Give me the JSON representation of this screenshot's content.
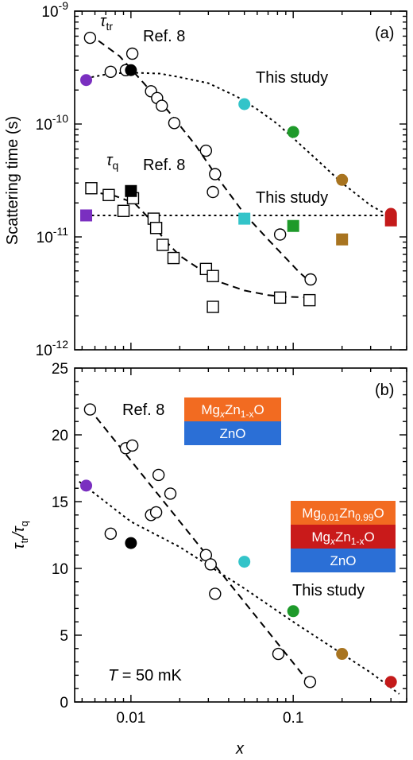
{
  "chart_data": [
    {
      "panel": "(a)",
      "type": "scatter",
      "yscale": "log",
      "xscale": "log",
      "xlim": [
        0.0045,
        0.5
      ],
      "ylim": [
        1e-12,
        1e-09
      ],
      "ylabel": "Scattering time (s)",
      "yticks": [
        {
          "value": 1e-09,
          "label": "10",
          "exp": "-9"
        },
        {
          "value": 1e-10,
          "label": "10",
          "exp": "-10"
        },
        {
          "value": 1e-11,
          "label": "10",
          "exp": "-11"
        },
        {
          "value": 1e-12,
          "label": "10",
          "exp": "-12"
        }
      ],
      "annotations": {
        "tau_tr_symbol": "τ",
        "tau_tr_sub": "tr",
        "tau_q_symbol": "τ",
        "tau_q_sub": "q",
        "ref_tr": "Ref. 8",
        "ref_q": "Ref. 8",
        "study_tr": "This study",
        "study_q": "This study"
      },
      "series": [
        {
          "name": "τtr Ref. 8",
          "marker": "open-circle",
          "points": [
            [
              0.0056,
              5.8e-10
            ],
            [
              0.0075,
              2.9e-10
            ],
            [
              0.0093,
              3e-10
            ],
            [
              0.0102,
              4.2e-10
            ],
            [
              0.0133,
              1.95e-10
            ],
            [
              0.0145,
              1.7e-10
            ],
            [
              0.0155,
              1.45e-10
            ],
            [
              0.0185,
              1.02e-10
            ],
            [
              0.029,
              5.8e-11
            ],
            [
              0.033,
              3.6e-11
            ],
            [
              0.032,
              2.5e-11
            ],
            [
              0.083,
              1.05e-11
            ],
            [
              0.128,
              4.2e-12
            ]
          ]
        },
        {
          "name": "τq Ref. 8",
          "marker": "open-square",
          "points": [
            [
              0.0057,
              2.7e-11
            ],
            [
              0.0073,
              2.35e-11
            ],
            [
              0.009,
              1.7e-11
            ],
            [
              0.0103,
              2.2e-11
            ],
            [
              0.0138,
              1.45e-11
            ],
            [
              0.0143,
              1.2e-11
            ],
            [
              0.0157,
              8.5e-12
            ],
            [
              0.0183,
              6.5e-12
            ],
            [
              0.029,
              5.2e-12
            ],
            [
              0.032,
              4.5e-12
            ],
            [
              0.032,
              2.4e-12
            ],
            [
              0.083,
              2.9e-12
            ],
            [
              0.126,
              2.75e-12
            ]
          ]
        },
        {
          "name": "τtr This study",
          "marker": "filled-circle",
          "points": [
            [
              0.0053,
              2.45e-10,
              "#7a2fc0"
            ],
            [
              0.01,
              3e-10,
              "#000000"
            ],
            [
              0.05,
              1.5e-10,
              "#33c4c9"
            ],
            [
              0.1,
              8.5e-11,
              "#1e9a2a"
            ],
            [
              0.2,
              3.2e-11,
              "#a87420"
            ],
            [
              0.4,
              1.6e-11,
              "#c41a1a"
            ]
          ]
        },
        {
          "name": "τq This study",
          "marker": "filled-square",
          "points": [
            [
              0.0053,
              1.55e-11,
              "#7a2fc0"
            ],
            [
              0.01,
              2.55e-11,
              "#000000"
            ],
            [
              0.05,
              1.45e-11,
              "#33c4c9"
            ],
            [
              0.1,
              1.25e-11,
              "#1e9a2a"
            ],
            [
              0.2,
              9.5e-12,
              "#a87420"
            ],
            [
              0.4,
              1.4e-11,
              "#c41a1a"
            ]
          ]
        }
      ],
      "fits": [
        {
          "style": "dashed",
          "points": [
            [
              0.0055,
              6.3e-10
            ],
            [
              0.0085,
              4e-10
            ],
            [
              0.012,
              2.3e-10
            ],
            [
              0.017,
              1.3e-10
            ],
            [
              0.025,
              6.5e-11
            ],
            [
              0.035,
              3.2e-11
            ],
            [
              0.05,
              1.6e-11
            ],
            [
              0.07,
              9.5e-12
            ],
            [
              0.09,
              6.5e-12
            ],
            [
              0.11,
              4.8e-12
            ],
            [
              0.13,
              3.9e-12
            ]
          ]
        },
        {
          "style": "dashed",
          "points": [
            [
              0.0055,
              2.55e-11
            ],
            [
              0.008,
              2.3e-11
            ],
            [
              0.0105,
              2e-11
            ],
            [
              0.013,
              1.45e-11
            ],
            [
              0.016,
              9.5e-12
            ],
            [
              0.02,
              6.8e-12
            ],
            [
              0.027,
              5.1e-12
            ],
            [
              0.035,
              4e-12
            ],
            [
              0.05,
              3.35e-12
            ],
            [
              0.07,
              3.05e-12
            ],
            [
              0.09,
              2.95e-12
            ],
            [
              0.13,
              2.9e-12
            ]
          ]
        },
        {
          "style": "dotted",
          "points": [
            [
              0.0053,
              2.55e-10
            ],
            [
              0.0075,
              2.8e-10
            ],
            [
              0.01,
              2.85e-10
            ],
            [
              0.015,
              2.8e-10
            ],
            [
              0.02,
              2.6e-10
            ],
            [
              0.03,
              2.3e-10
            ],
            [
              0.045,
              1.75e-10
            ],
            [
              0.06,
              1.35e-10
            ],
            [
              0.08,
              1e-10
            ],
            [
              0.1,
              7.5e-11
            ],
            [
              0.15,
              4.4e-11
            ],
            [
              0.2,
              3e-11
            ],
            [
              0.3,
              1.9e-11
            ],
            [
              0.42,
              1.45e-11
            ]
          ]
        },
        {
          "style": "dotted",
          "points": [
            [
              0.0053,
              1.55e-11
            ],
            [
              0.42,
              1.55e-11
            ]
          ]
        }
      ]
    },
    {
      "panel": "(b)",
      "type": "scatter",
      "xscale": "log",
      "xlim": [
        0.0045,
        0.5
      ],
      "ylim": [
        0,
        25
      ],
      "xlabel": "x",
      "ylabel_symbol": "τ",
      "ylabel_num_sub": "tr",
      "ylabel_den_sub": "q",
      "yticks": [
        0,
        5,
        10,
        15,
        20,
        25
      ],
      "xticks": [
        {
          "value": 0.01,
          "label": "0.01"
        },
        {
          "value": 0.1,
          "label": "0.1"
        }
      ],
      "annotations": {
        "ref": "Ref. 8",
        "study": "This study",
        "temp_symbol": "T",
        "temp_value": " = 50 mK"
      },
      "insets": {
        "ref_layers": [
          {
            "text": "Mg",
            "sub": "x",
            "rest": "Zn",
            "sub2": "1-x",
            "tail": "O",
            "color": "#f26b21"
          },
          {
            "text": "ZnO",
            "color": "#2b6fd6"
          }
        ],
        "study_layers": [
          {
            "text": "Mg",
            "sub": "0.01",
            "rest": "Zn",
            "sub2": "0.99",
            "tail": "O",
            "color": "#f26b21"
          },
          {
            "text": "Mg",
            "sub": "x",
            "rest": "Zn",
            "sub2": "1-x",
            "tail": "O",
            "color": "#c91a1a"
          },
          {
            "text": "ZnO",
            "color": "#2b6fd6"
          }
        ]
      },
      "series": [
        {
          "name": "Ref. 8",
          "marker": "open-circle",
          "points": [
            [
              0.0056,
              21.9
            ],
            [
              0.0093,
              19.0
            ],
            [
              0.0102,
              19.2
            ],
            [
              0.0148,
              17.0
            ],
            [
              0.0175,
              15.6
            ],
            [
              0.0133,
              14.0
            ],
            [
              0.0143,
              14.2
            ],
            [
              0.0075,
              12.6
            ],
            [
              0.029,
              11.0
            ],
            [
              0.031,
              10.3
            ],
            [
              0.033,
              8.1
            ],
            [
              0.081,
              3.6
            ],
            [
              0.127,
              1.5
            ]
          ]
        },
        {
          "name": "This study",
          "marker": "filled-circle",
          "points": [
            [
              0.0053,
              16.2,
              "#7a2fc0"
            ],
            [
              0.01,
              11.9,
              "#000000"
            ],
            [
              0.05,
              10.5,
              "#33c4c9"
            ],
            [
              0.1,
              6.8,
              "#1e9a2a"
            ],
            [
              0.2,
              3.6,
              "#a87420"
            ],
            [
              0.4,
              1.5,
              "#c41a1a"
            ]
          ]
        }
      ],
      "fits": [
        {
          "style": "dashed",
          "points": [
            [
              0.0055,
              22.0
            ],
            [
              0.13,
              1.2
            ]
          ]
        },
        {
          "style": "dotted",
          "points": [
            [
              0.0048,
              16.5
            ],
            [
              0.01,
              13.5
            ],
            [
              0.02,
              11.6
            ],
            [
              0.05,
              8.5
            ],
            [
              0.1,
              6.0
            ],
            [
              0.2,
              3.6
            ],
            [
              0.3,
              2.2
            ],
            [
              0.45,
              0.6
            ]
          ]
        }
      ]
    }
  ]
}
